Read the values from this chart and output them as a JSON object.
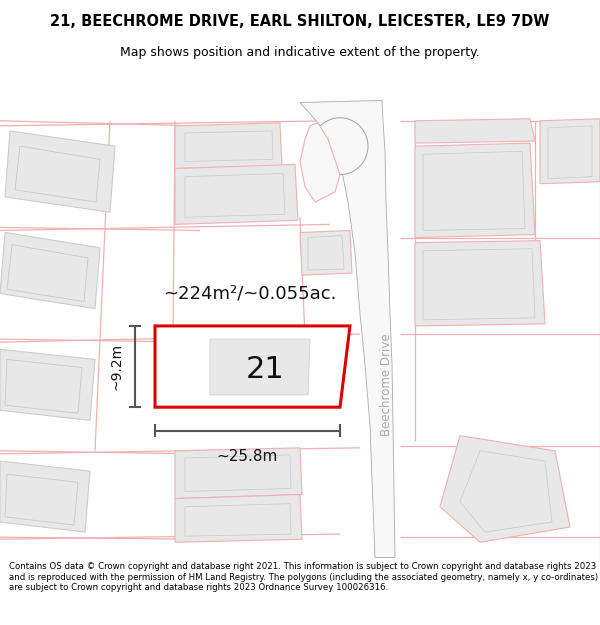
{
  "title_line1": "21, BEECHROME DRIVE, EARL SHILTON, LEICESTER, LE9 7DW",
  "title_line2": "Map shows position and indicative extent of the property.",
  "footer_text": "Contains OS data © Crown copyright and database right 2021. This information is subject to Crown copyright and database rights 2023 and is reproduced with the permission of HM Land Registry. The polygons (including the associated geometry, namely x, y co-ordinates) are subject to Crown copyright and database rights 2023 Ordnance Survey 100026316.",
  "area_label": "~224m²/~0.055ac.",
  "width_label": "~25.8m",
  "height_label": "~9.2m",
  "plot_number": "21",
  "road_label": "Beechrome Drive",
  "bg_color": "#ffffff",
  "map_bg": "#ffffff",
  "plot_fill": "#ffffff",
  "plot_edge": "#dd0000",
  "bld_fill": "#e8e8e8",
  "bld_edge": "#cccccc",
  "road_outline": "#f0b0b0",
  "road_fill": "#ffffff",
  "road_center_color": "#aaaaaa",
  "dim_color": "#444444",
  "title_bg": "#e8e8e8",
  "footer_bg": "#f0f0f0"
}
